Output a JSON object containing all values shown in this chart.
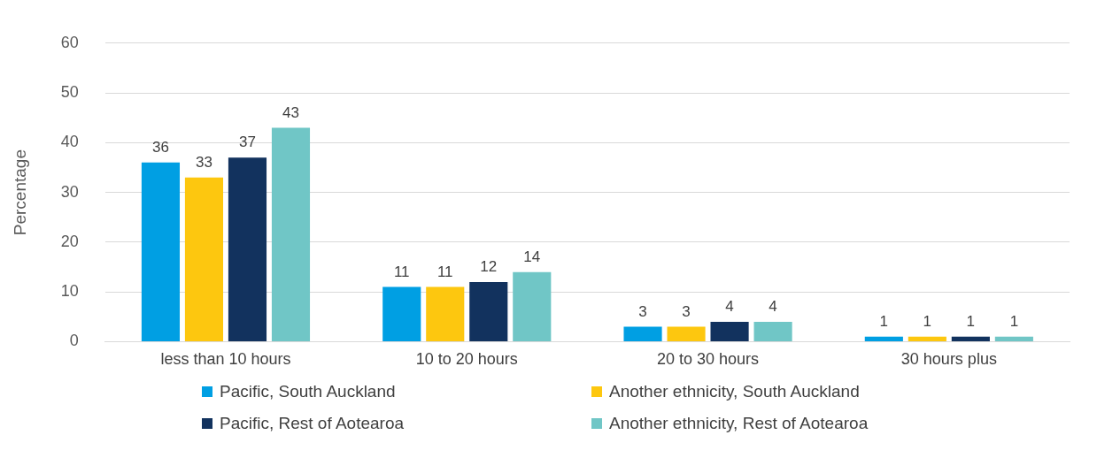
{
  "chart_data": {
    "type": "bar",
    "ylabel": "Percentage",
    "categories": [
      "less than 10 hours",
      "10 to 20 hours",
      "20 to 30 hours",
      "30 hours plus"
    ],
    "series": [
      {
        "name": "Pacific, South Auckland",
        "color": "#009fe3",
        "values": [
          36,
          11,
          3,
          1
        ]
      },
      {
        "name": "Another ethnicity, South Auckland",
        "color": "#fdc70f",
        "values": [
          33,
          11,
          3,
          1
        ]
      },
      {
        "name": "Pacific, Rest of Aotearoa",
        "color": "#12325e",
        "values": [
          37,
          12,
          4,
          1
        ]
      },
      {
        "name": "Another ethnicity, Rest of Aotearoa",
        "color": "#70c6c6",
        "values": [
          43,
          14,
          4,
          1
        ]
      }
    ],
    "ylim": [
      0,
      60
    ],
    "yticks": [
      0,
      10,
      20,
      30,
      40,
      50,
      60
    ],
    "grid": "y",
    "legend": "bottom",
    "data_labels": true
  }
}
